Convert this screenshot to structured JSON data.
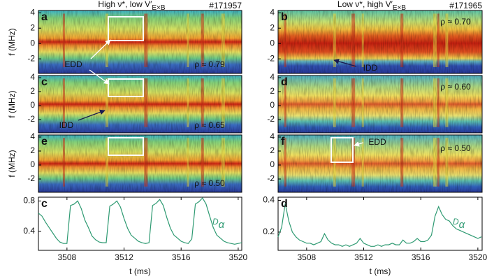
{
  "chart_data": [
    {
      "type": "spectrogram",
      "panel": "a",
      "title": "High ν*, low V′",
      "title_sub": "E×B",
      "shot": "#171957",
      "ylabel": "f (MHz)",
      "ylim": [
        -3.9,
        4.3
      ],
      "yticks": [
        4,
        2,
        0,
        -2
      ],
      "annotations": [
        {
          "text": "ρ ≈ 0.79"
        },
        {
          "text": "EDD"
        }
      ]
    },
    {
      "type": "spectrogram",
      "panel": "b",
      "title": "Low ν*, high V′",
      "title_sub": "E×B",
      "shot": "#171965",
      "ylim": [
        -3.9,
        4.3
      ],
      "yticks": [
        4,
        2,
        0,
        -2
      ],
      "annotations": [
        {
          "text": "ρ ≈ 0.70"
        },
        {
          "text": "IDD"
        }
      ]
    },
    {
      "type": "spectrogram",
      "panel": "c",
      "ylabel": "f (MHz)",
      "ylim": [
        -3.9,
        4.3
      ],
      "yticks": [
        4,
        2,
        0,
        -2
      ],
      "annotations": [
        {
          "text": "ρ ≈ 0.65"
        },
        {
          "text": "IDD"
        }
      ]
    },
    {
      "type": "spectrogram",
      "panel": "d",
      "ylim": [
        -3.9,
        4.3
      ],
      "yticks": [
        4,
        2,
        0,
        -2
      ],
      "annotations": [
        {
          "text": "ρ ≈ 0.60"
        }
      ]
    },
    {
      "type": "spectrogram",
      "panel": "e",
      "ylabel": "f (MHz)",
      "ylim": [
        -3.9,
        4.3
      ],
      "yticks": [
        4,
        2,
        0,
        -2
      ],
      "annotations": [
        {
          "text": "ρ ≈ 0.50"
        }
      ]
    },
    {
      "type": "spectrogram",
      "panel": "f",
      "ylim": [
        -3.9,
        4.3
      ],
      "yticks": [
        4,
        2,
        0,
        -2
      ],
      "annotations": [
        {
          "text": "ρ ≈ 0.50"
        },
        {
          "text": "EDD"
        }
      ]
    },
    {
      "type": "line",
      "panel": "c",
      "xlabel": "t (ms)",
      "xlim": [
        3506,
        3520.25
      ],
      "xticks": [
        3508,
        3512,
        3516,
        3520
      ],
      "ylim": [
        0.15,
        0.85
      ],
      "yticks": [
        0.4,
        0.8
      ],
      "x": [
        3506,
        3506.25,
        3506.5,
        3506.75,
        3507,
        3507.25,
        3507.5,
        3507.75,
        3508,
        3508.25,
        3508.5,
        3508.75,
        3509,
        3509.25,
        3509.5,
        3509.75,
        3510,
        3510.25,
        3510.5,
        3510.75,
        3511,
        3511.25,
        3511.5,
        3511.75,
        3512,
        3512.25,
        3512.5,
        3512.75,
        3513,
        3513.25,
        3513.5,
        3513.75,
        3514,
        3514.25,
        3514.5,
        3514.75,
        3515,
        3515.25,
        3515.5,
        3515.75,
        3516,
        3516.25,
        3516.5,
        3516.75,
        3517,
        3517.25,
        3517.5,
        3517.75,
        3518,
        3518.25,
        3518.5,
        3518.75,
        3519,
        3519.25,
        3519.5,
        3519.75,
        3520,
        3520.25
      ],
      "series": [
        {
          "name": "D",
          "name_sub": "α",
          "color": "#2e9a72",
          "values": [
            0.64,
            0.6,
            0.52,
            0.45,
            0.38,
            0.31,
            0.26,
            0.24,
            0.24,
            0.74,
            0.76,
            0.8,
            0.7,
            0.55,
            0.45,
            0.34,
            0.29,
            0.26,
            0.25,
            0.25,
            0.73,
            0.76,
            0.8,
            0.72,
            0.57,
            0.44,
            0.35,
            0.31,
            0.27,
            0.25,
            0.24,
            0.25,
            0.74,
            0.77,
            0.82,
            0.74,
            0.58,
            0.44,
            0.35,
            0.31,
            0.27,
            0.25,
            0.24,
            0.3,
            0.76,
            0.79,
            0.84,
            0.76,
            0.6,
            0.45,
            0.35,
            0.31,
            0.27,
            0.25,
            0.24,
            0.23,
            0.24,
            0.25
          ]
        }
      ]
    },
    {
      "type": "line",
      "panel": "d",
      "xlabel": "t (ms)",
      "xlim": [
        3506,
        3520.3
      ],
      "xticks": [
        3508,
        3512,
        3516,
        3520
      ],
      "ylim": [
        0.085,
        0.42
      ],
      "yticks": [
        0.2,
        0.4
      ],
      "x": [
        3506,
        3506.25,
        3506.5,
        3506.75,
        3507,
        3507.25,
        3507.5,
        3507.75,
        3508,
        3508.25,
        3508.5,
        3508.75,
        3509,
        3509.25,
        3509.5,
        3509.75,
        3510,
        3510.25,
        3510.5,
        3510.75,
        3511,
        3511.25,
        3511.5,
        3511.75,
        3512,
        3512.25,
        3512.5,
        3512.75,
        3513,
        3513.25,
        3513.5,
        3513.75,
        3514,
        3514.25,
        3514.5,
        3514.75,
        3515,
        3515.25,
        3515.5,
        3515.75,
        3516,
        3516.25,
        3516.5,
        3516.75,
        3517,
        3517.25,
        3517.5,
        3517.75,
        3518,
        3518.25,
        3518.5,
        3518.75,
        3519,
        3519.25,
        3519.5,
        3519.75,
        3520,
        3520.25
      ],
      "series": [
        {
          "name": "D",
          "name_sub": "α",
          "color": "#2e9a72",
          "values": [
            0.17,
            0.23,
            0.38,
            0.27,
            0.2,
            0.17,
            0.15,
            0.14,
            0.13,
            0.13,
            0.12,
            0.13,
            0.14,
            0.19,
            0.15,
            0.13,
            0.12,
            0.12,
            0.11,
            0.12,
            0.11,
            0.12,
            0.13,
            0.16,
            0.13,
            0.12,
            0.11,
            0.11,
            0.12,
            0.11,
            0.12,
            0.12,
            0.13,
            0.12,
            0.12,
            0.15,
            0.13,
            0.13,
            0.14,
            0.16,
            0.14,
            0.14,
            0.15,
            0.18,
            0.3,
            0.36,
            0.31,
            0.28,
            0.27,
            0.24,
            0.22,
            0.21,
            0.2,
            0.19,
            0.18,
            0.17,
            0.16,
            0.17
          ]
        }
      ]
    }
  ]
}
